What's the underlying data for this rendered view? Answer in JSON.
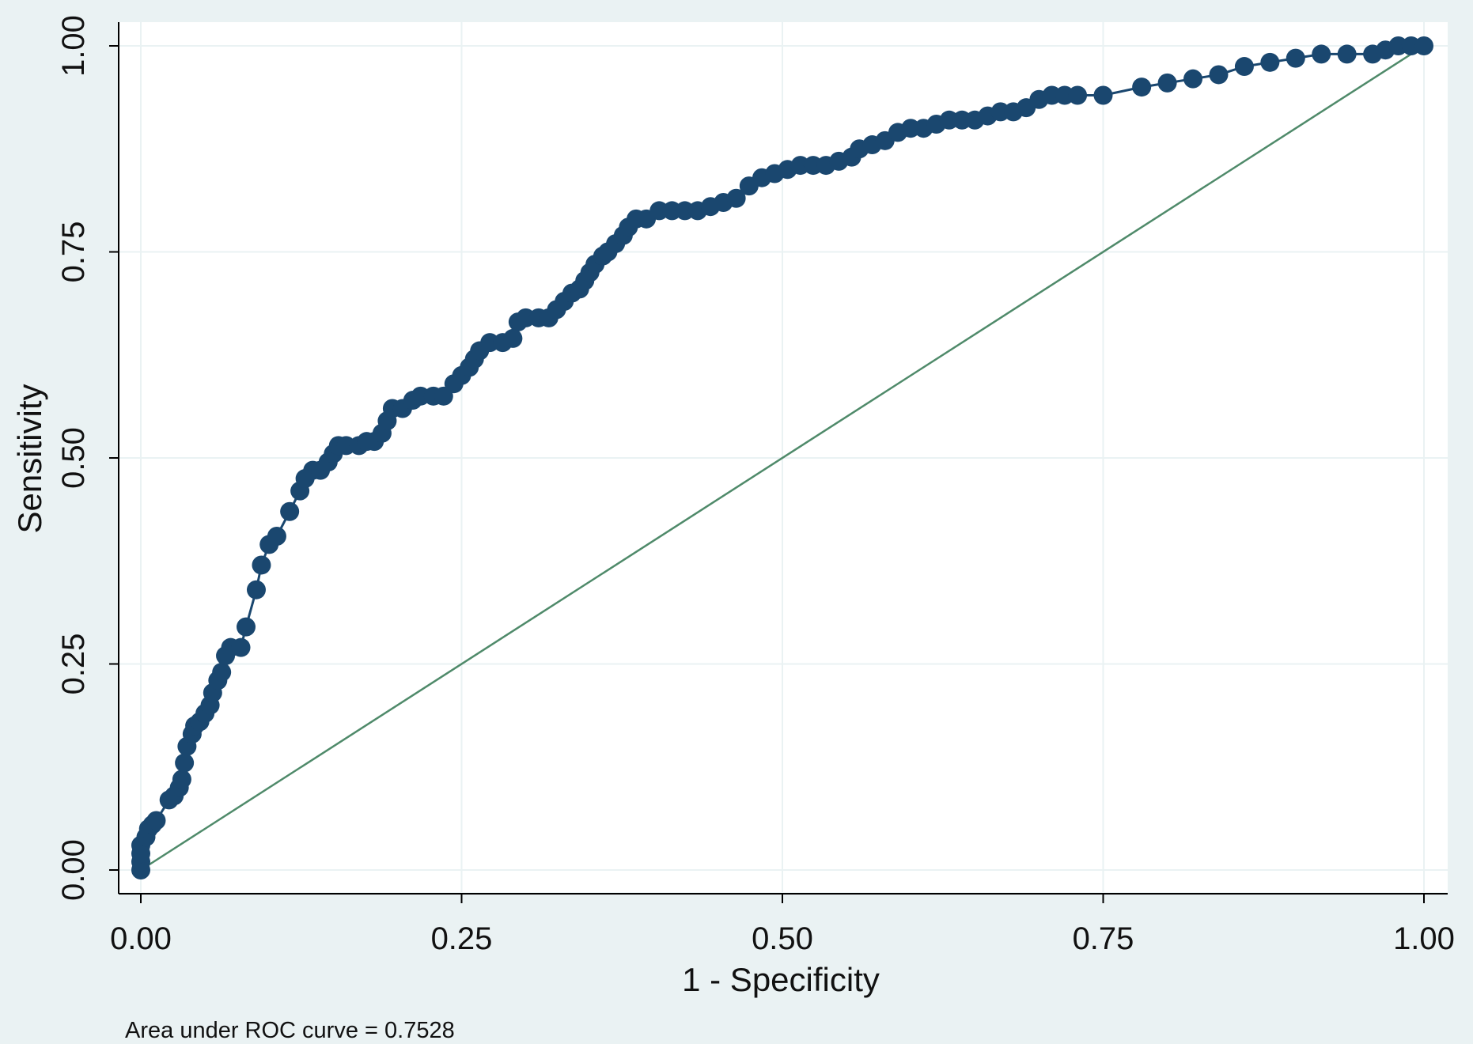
{
  "chart_data": {
    "type": "line",
    "title": "",
    "xlabel": "1 - Specificity",
    "ylabel": "Sensitivity",
    "xlim": [
      0,
      1
    ],
    "ylim": [
      0,
      1
    ],
    "x_ticks": [
      "0.00",
      "0.25",
      "0.50",
      "0.75",
      "1.00"
    ],
    "y_ticks": [
      "0.00",
      "0.25",
      "0.50",
      "0.75",
      "1.00"
    ],
    "grid": true,
    "note": "Area under ROC curve = 0.7528",
    "colors": {
      "background": "#eaf2f3",
      "plot_background": "#ffffff",
      "gridline": "#eaf2f3",
      "axis": "#000000",
      "roc_curve": "#1a476f",
      "reference_line": "#4f8a6a"
    },
    "series": [
      {
        "style": "line-with-markers",
        "points": [
          [
            0.0,
            0.0
          ],
          [
            0.0,
            0.01
          ],
          [
            0.0,
            0.02
          ],
          [
            0.0,
            0.03
          ],
          [
            0.004,
            0.04
          ],
          [
            0.006,
            0.05
          ],
          [
            0.009,
            0.055
          ],
          [
            0.012,
            0.06
          ],
          [
            0.022,
            0.085
          ],
          [
            0.026,
            0.09
          ],
          [
            0.03,
            0.1
          ],
          [
            0.032,
            0.11
          ],
          [
            0.034,
            0.13
          ],
          [
            0.036,
            0.15
          ],
          [
            0.04,
            0.165
          ],
          [
            0.042,
            0.175
          ],
          [
            0.046,
            0.18
          ],
          [
            0.05,
            0.19
          ],
          [
            0.054,
            0.2
          ],
          [
            0.056,
            0.215
          ],
          [
            0.06,
            0.23
          ],
          [
            0.063,
            0.24
          ],
          [
            0.066,
            0.26
          ],
          [
            0.07,
            0.27
          ],
          [
            0.078,
            0.27
          ],
          [
            0.082,
            0.295
          ],
          [
            0.09,
            0.34
          ],
          [
            0.094,
            0.37
          ],
          [
            0.1,
            0.395
          ],
          [
            0.106,
            0.405
          ],
          [
            0.116,
            0.435
          ],
          [
            0.124,
            0.46
          ],
          [
            0.128,
            0.475
          ],
          [
            0.134,
            0.485
          ],
          [
            0.14,
            0.485
          ],
          [
            0.146,
            0.495
          ],
          [
            0.15,
            0.505
          ],
          [
            0.154,
            0.515
          ],
          [
            0.16,
            0.515
          ],
          [
            0.17,
            0.515
          ],
          [
            0.176,
            0.52
          ],
          [
            0.182,
            0.52
          ],
          [
            0.188,
            0.53
          ],
          [
            0.192,
            0.545
          ],
          [
            0.196,
            0.56
          ],
          [
            0.204,
            0.56
          ],
          [
            0.212,
            0.57
          ],
          [
            0.218,
            0.575
          ],
          [
            0.228,
            0.575
          ],
          [
            0.236,
            0.575
          ],
          [
            0.244,
            0.59
          ],
          [
            0.25,
            0.6
          ],
          [
            0.256,
            0.61
          ],
          [
            0.26,
            0.62
          ],
          [
            0.264,
            0.63
          ],
          [
            0.272,
            0.64
          ],
          [
            0.282,
            0.64
          ],
          [
            0.29,
            0.645
          ],
          [
            0.294,
            0.665
          ],
          [
            0.3,
            0.67
          ],
          [
            0.31,
            0.67
          ],
          [
            0.318,
            0.67
          ],
          [
            0.324,
            0.68
          ],
          [
            0.33,
            0.69
          ],
          [
            0.336,
            0.7
          ],
          [
            0.342,
            0.705
          ],
          [
            0.346,
            0.715
          ],
          [
            0.35,
            0.725
          ],
          [
            0.354,
            0.735
          ],
          [
            0.36,
            0.745
          ],
          [
            0.364,
            0.75
          ],
          [
            0.37,
            0.76
          ],
          [
            0.376,
            0.77
          ],
          [
            0.38,
            0.78
          ],
          [
            0.386,
            0.79
          ],
          [
            0.394,
            0.79
          ],
          [
            0.404,
            0.8
          ],
          [
            0.414,
            0.8
          ],
          [
            0.424,
            0.8
          ],
          [
            0.434,
            0.8
          ],
          [
            0.444,
            0.805
          ],
          [
            0.454,
            0.81
          ],
          [
            0.464,
            0.815
          ],
          [
            0.474,
            0.83
          ],
          [
            0.484,
            0.84
          ],
          [
            0.494,
            0.845
          ],
          [
            0.504,
            0.85
          ],
          [
            0.514,
            0.855
          ],
          [
            0.524,
            0.855
          ],
          [
            0.534,
            0.855
          ],
          [
            0.544,
            0.86
          ],
          [
            0.554,
            0.865
          ],
          [
            0.56,
            0.875
          ],
          [
            0.57,
            0.88
          ],
          [
            0.58,
            0.885
          ],
          [
            0.59,
            0.895
          ],
          [
            0.6,
            0.9
          ],
          [
            0.61,
            0.9
          ],
          [
            0.62,
            0.905
          ],
          [
            0.63,
            0.91
          ],
          [
            0.64,
            0.91
          ],
          [
            0.65,
            0.91
          ],
          [
            0.66,
            0.915
          ],
          [
            0.67,
            0.92
          ],
          [
            0.68,
            0.92
          ],
          [
            0.69,
            0.925
          ],
          [
            0.7,
            0.935
          ],
          [
            0.71,
            0.94
          ],
          [
            0.72,
            0.94
          ],
          [
            0.73,
            0.94
          ],
          [
            0.75,
            0.94
          ],
          [
            0.78,
            0.95
          ],
          [
            0.8,
            0.955
          ],
          [
            0.82,
            0.96
          ],
          [
            0.84,
            0.965
          ],
          [
            0.86,
            0.975
          ],
          [
            0.88,
            0.98
          ],
          [
            0.9,
            0.985
          ],
          [
            0.92,
            0.99
          ],
          [
            0.94,
            0.99
          ],
          [
            0.96,
            0.99
          ],
          [
            0.97,
            0.995
          ],
          [
            0.98,
            1.0
          ],
          [
            0.99,
            1.0
          ],
          [
            1.0,
            1.0
          ]
        ]
      },
      {
        "style": "reference-line",
        "points": [
          [
            0,
            0
          ],
          [
            1,
            1
          ]
        ]
      }
    ]
  }
}
